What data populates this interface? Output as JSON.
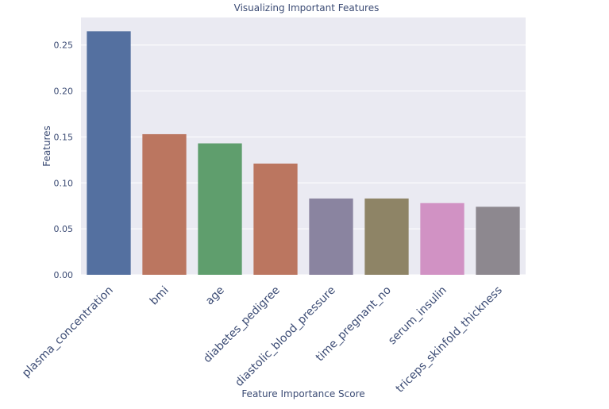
{
  "chart_data": {
    "type": "bar",
    "title": "Visualizing Important Features",
    "xlabel": "Feature Importance Score",
    "ylabel": "Features",
    "categories": [
      "plasma_concentration",
      "bmi",
      "age",
      "diabetes_pedigree",
      "diastolic_blood_pressure",
      "time_pregnant_no",
      "serum_insulin",
      "triceps_skinfold_thickness"
    ],
    "values": [
      0.265,
      0.153,
      0.143,
      0.121,
      0.083,
      0.083,
      0.078,
      0.074
    ],
    "bar_colors": [
      "#5470a0",
      "#bb7660",
      "#5f9e6d",
      "#bb7660",
      "#8a84a0",
      "#8e8466",
      "#d192c4",
      "#8d888f"
    ],
    "ylim": [
      0,
      0.28
    ],
    "yticks": [
      "0.00",
      "0.05",
      "0.10",
      "0.15",
      "0.20",
      "0.25"
    ],
    "ytick_values": [
      0,
      0.05,
      0.1,
      0.15,
      0.2,
      0.25
    ],
    "grid": true,
    "background": "#eaeaf2",
    "text_color": "#3b4b74"
  }
}
